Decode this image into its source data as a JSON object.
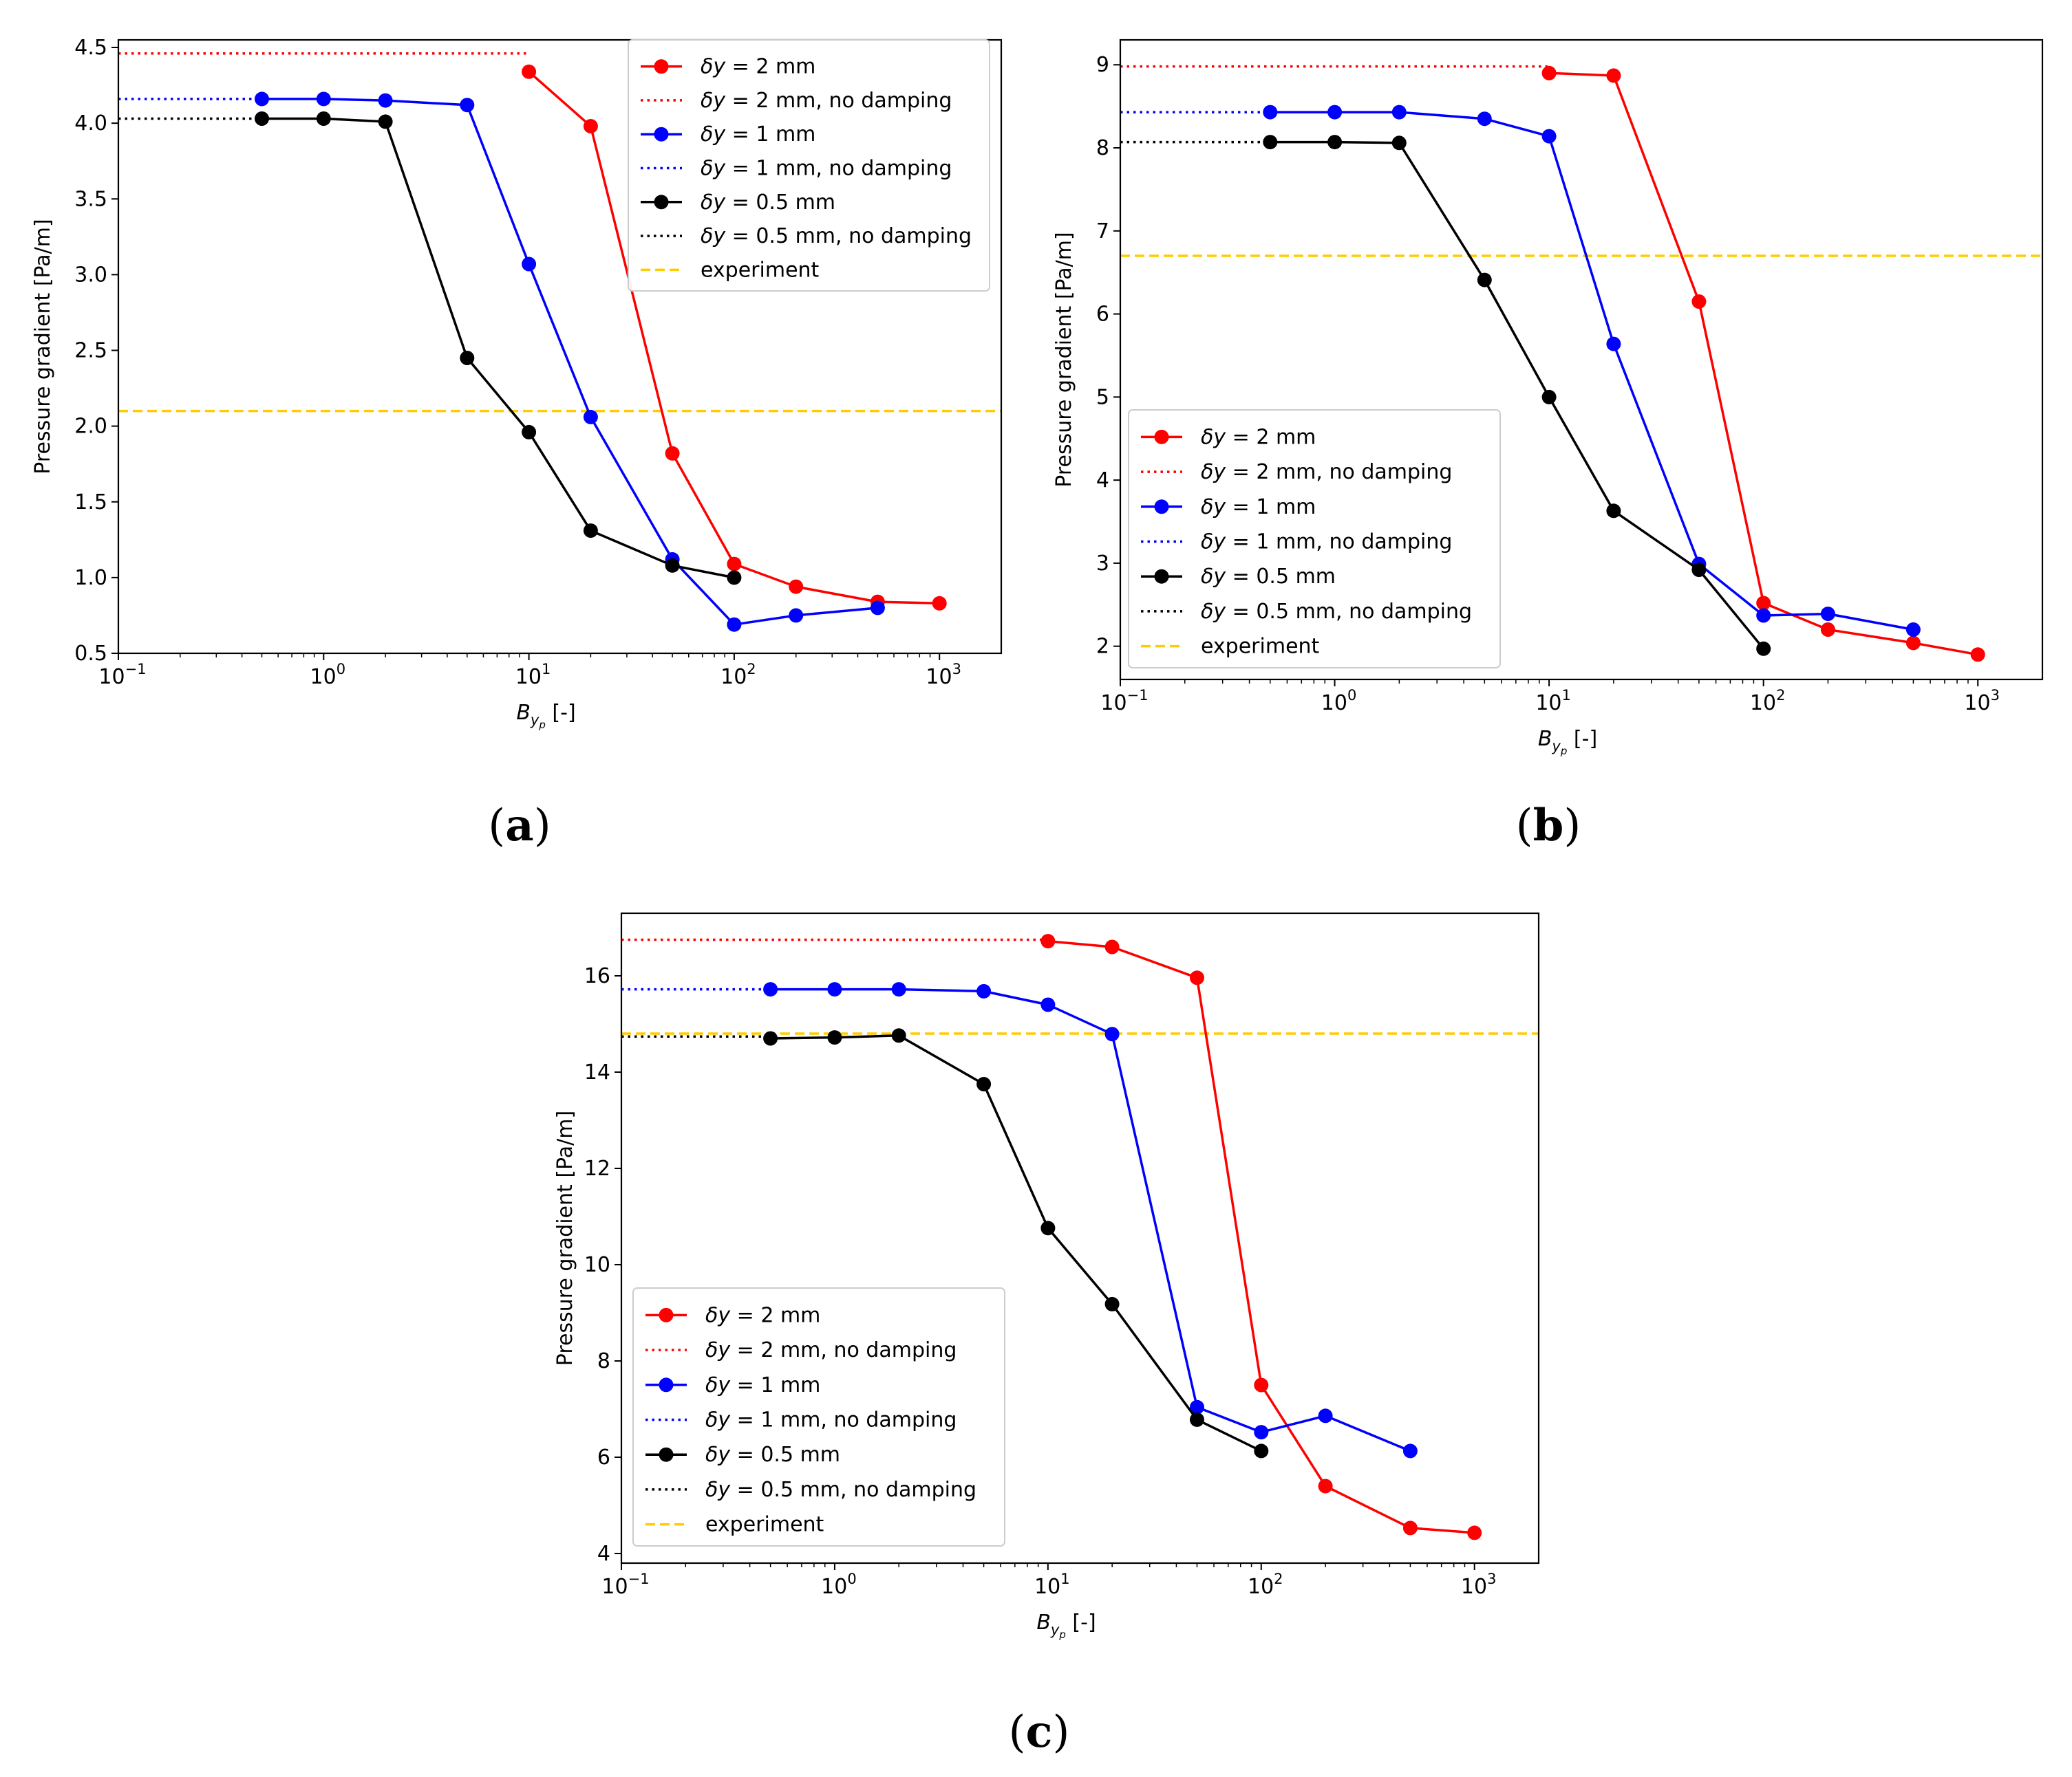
{
  "chart_data": [
    {
      "type": "line",
      "panel": "(a)",
      "caption_label": "a",
      "xscale": "log",
      "xlim": [
        0.1,
        2000
      ],
      "ylim": [
        0.5,
        4.55
      ],
      "xlabel": "B_yp [-]",
      "xlabel_main": "B",
      "xlabel_sub": "y",
      "xlabel_subsub": "p",
      "xlabel_unit": "[-]",
      "ylabel": "Pressure gradient [Pa/m]",
      "x_ticks": [
        0.1,
        1,
        10,
        100,
        1000
      ],
      "x_tick_exponents": [
        "−1",
        "0",
        "1",
        "2",
        "3"
      ],
      "x_tick_base": "10",
      "y_ticks": [
        0.5,
        1.0,
        1.5,
        2.0,
        2.5,
        3.0,
        3.5,
        4.0,
        4.5
      ],
      "y_tick_labels": [
        "0.5",
        "1.0",
        "1.5",
        "2.0",
        "2.5",
        "3.0",
        "3.5",
        "4.0",
        "4.5"
      ],
      "legend_position": "upper-right",
      "series": [
        {
          "name": "δy = 2 mm",
          "legend_symbol": "δy",
          "legend_text": " = 2 mm",
          "style": "solid-marker",
          "color": "#ff0000",
          "x": [
            10,
            20,
            50,
            100,
            200,
            500,
            1000
          ],
          "y": [
            4.34,
            3.98,
            1.82,
            1.09,
            0.94,
            0.84,
            0.83
          ]
        },
        {
          "name": "δy = 2 mm, no damping",
          "legend_symbol": "δy",
          "legend_text": " = 2 mm, no damping",
          "style": "dotted",
          "color": "#ff0000",
          "x": [
            0.1,
            10
          ],
          "y": [
            4.46,
            4.46
          ]
        },
        {
          "name": "δy = 1 mm",
          "legend_symbol": "δy",
          "legend_text": " = 1 mm",
          "style": "solid-marker",
          "color": "#0000ff",
          "x": [
            0.5,
            1,
            2,
            5,
            10,
            20,
            50,
            100,
            200,
            500
          ],
          "y": [
            4.16,
            4.16,
            4.15,
            4.12,
            3.07,
            2.06,
            1.12,
            0.69,
            0.75,
            0.8
          ]
        },
        {
          "name": "δy = 1 mm, no damping",
          "legend_symbol": "δy",
          "legend_text": " = 1 mm, no damping",
          "style": "dotted",
          "color": "#0000ff",
          "x": [
            0.1,
            0.5
          ],
          "y": [
            4.16,
            4.16
          ]
        },
        {
          "name": "δy = 0.5 mm",
          "legend_symbol": "δy",
          "legend_text": " = 0.5 mm",
          "style": "solid-marker",
          "color": "#000000",
          "x": [
            0.5,
            1,
            2,
            5,
            10,
            20,
            50,
            100
          ],
          "y": [
            4.03,
            4.03,
            4.01,
            2.45,
            1.96,
            1.31,
            1.08,
            1.0
          ]
        },
        {
          "name": "δy = 0.5 mm, no damping",
          "legend_symbol": "δy",
          "legend_text": " = 0.5 mm, no damping",
          "style": "dotted",
          "color": "#000000",
          "x": [
            0.1,
            0.5
          ],
          "y": [
            4.03,
            4.03
          ]
        },
        {
          "name": "experiment",
          "legend_symbol": "",
          "legend_text": "experiment",
          "style": "dashed",
          "color": "#ffcc00",
          "x": [
            0.1,
            2000
          ],
          "y": [
            2.1,
            2.1
          ]
        }
      ]
    },
    {
      "type": "line",
      "panel": "(b)",
      "caption_label": "b",
      "xscale": "log",
      "xlim": [
        0.1,
        2000
      ],
      "ylim": [
        1.6,
        9.3
      ],
      "xlabel": "B_yp [-]",
      "xlabel_main": "B",
      "xlabel_sub": "y",
      "xlabel_subsub": "p",
      "xlabel_unit": "[-]",
      "ylabel": "Pressure gradient [Pa/m]",
      "x_ticks": [
        0.1,
        1,
        10,
        100,
        1000
      ],
      "x_tick_exponents": [
        "−1",
        "0",
        "1",
        "2",
        "3"
      ],
      "x_tick_base": "10",
      "y_ticks": [
        2,
        3,
        4,
        5,
        6,
        7,
        8,
        9
      ],
      "y_tick_labels": [
        "2",
        "3",
        "4",
        "5",
        "6",
        "7",
        "8",
        "9"
      ],
      "legend_position": "lower-left",
      "series": [
        {
          "name": "δy = 2 mm",
          "legend_symbol": "δy",
          "legend_text": " = 2 mm",
          "style": "solid-marker",
          "color": "#ff0000",
          "x": [
            10,
            20,
            50,
            100,
            200,
            500,
            1000
          ],
          "y": [
            8.9,
            8.87,
            6.15,
            2.52,
            2.2,
            2.04,
            1.9
          ]
        },
        {
          "name": "δy = 2 mm, no damping",
          "legend_symbol": "δy",
          "legend_text": " = 2 mm, no damping",
          "style": "dotted",
          "color": "#ff0000",
          "x": [
            0.1,
            10
          ],
          "y": [
            8.98,
            8.98
          ]
        },
        {
          "name": "δy = 1 mm",
          "legend_symbol": "δy",
          "legend_text": " = 1 mm",
          "style": "solid-marker",
          "color": "#0000ff",
          "x": [
            0.5,
            1,
            2,
            5,
            10,
            20,
            50,
            100,
            200,
            500
          ],
          "y": [
            8.43,
            8.43,
            8.43,
            8.35,
            8.14,
            5.64,
            2.99,
            2.37,
            2.39,
            2.2
          ]
        },
        {
          "name": "δy = 1 mm, no damping",
          "legend_symbol": "δy",
          "legend_text": " = 1 mm, no damping",
          "style": "dotted",
          "color": "#0000ff",
          "x": [
            0.1,
            0.5
          ],
          "y": [
            8.43,
            8.43
          ]
        },
        {
          "name": "δy = 0.5 mm",
          "legend_symbol": "δy",
          "legend_text": " = 0.5 mm",
          "style": "solid-marker",
          "color": "#000000",
          "x": [
            0.5,
            1,
            2,
            5,
            10,
            20,
            50,
            100
          ],
          "y": [
            8.07,
            8.07,
            8.06,
            6.41,
            5.0,
            3.63,
            2.92,
            1.97
          ]
        },
        {
          "name": "δy = 0.5 mm, no damping",
          "legend_symbol": "δy",
          "legend_text": " = 0.5 mm, no damping",
          "style": "dotted",
          "color": "#000000",
          "x": [
            0.1,
            0.5
          ],
          "y": [
            8.07,
            8.07
          ]
        },
        {
          "name": "experiment",
          "legend_symbol": "",
          "legend_text": "experiment",
          "style": "dashed",
          "color": "#ffcc00",
          "x": [
            0.1,
            2000
          ],
          "y": [
            6.7,
            6.7
          ]
        }
      ]
    },
    {
      "type": "line",
      "panel": "(c)",
      "caption_label": "c",
      "xscale": "log",
      "xlim": [
        0.1,
        2000
      ],
      "ylim": [
        3.8,
        17.3
      ],
      "xlabel": "B_yp [-]",
      "xlabel_main": "B",
      "xlabel_sub": "y",
      "xlabel_subsub": "p",
      "xlabel_unit": "[-]",
      "ylabel": "Pressure gradient [Pa/m]",
      "x_ticks": [
        0.1,
        1,
        10,
        100,
        1000
      ],
      "x_tick_exponents": [
        "−1",
        "0",
        "1",
        "2",
        "3"
      ],
      "x_tick_base": "10",
      "y_ticks": [
        4,
        6,
        8,
        10,
        12,
        14,
        16
      ],
      "y_tick_labels": [
        "4",
        "6",
        "8",
        "10",
        "12",
        "14",
        "16"
      ],
      "legend_position": "lower-left",
      "series": [
        {
          "name": "δy = 2 mm",
          "legend_symbol": "δy",
          "legend_text": " = 2 mm",
          "style": "solid-marker",
          "color": "#ff0000",
          "x": [
            10,
            20,
            50,
            100,
            200,
            500,
            1000
          ],
          "y": [
            16.72,
            16.6,
            15.96,
            7.5,
            5.4,
            4.53,
            4.43
          ]
        },
        {
          "name": "δy = 2 mm, no damping",
          "legend_symbol": "δy",
          "legend_text": " = 2 mm, no damping",
          "style": "dotted",
          "color": "#ff0000",
          "x": [
            0.1,
            10
          ],
          "y": [
            16.75,
            16.75
          ]
        },
        {
          "name": "δy = 1 mm",
          "legend_symbol": "δy",
          "legend_text": " = 1 mm",
          "style": "solid-marker",
          "color": "#0000ff",
          "x": [
            0.5,
            1,
            2,
            5,
            10,
            20,
            50,
            100,
            200,
            500
          ],
          "y": [
            15.72,
            15.72,
            15.72,
            15.68,
            15.4,
            14.79,
            7.04,
            6.52,
            6.86,
            6.13
          ]
        },
        {
          "name": "δy = 1 mm, no damping",
          "legend_symbol": "δy",
          "legend_text": " = 1 mm, no damping",
          "style": "dotted",
          "color": "#0000ff",
          "x": [
            0.1,
            0.5
          ],
          "y": [
            15.72,
            15.72
          ]
        },
        {
          "name": "δy = 0.5 mm",
          "legend_symbol": "δy",
          "legend_text": " = 0.5 mm",
          "style": "solid-marker",
          "color": "#000000",
          "x": [
            0.5,
            1,
            2,
            5,
            10,
            20,
            50,
            100
          ],
          "y": [
            14.7,
            14.72,
            14.76,
            13.75,
            10.76,
            9.18,
            6.78,
            6.13
          ]
        },
        {
          "name": "δy = 0.5 mm, no damping",
          "legend_symbol": "δy",
          "legend_text": " = 0.5 mm, no damping",
          "style": "dotted",
          "color": "#000000",
          "x": [
            0.1,
            0.5
          ],
          "y": [
            14.74,
            14.74
          ]
        },
        {
          "name": "experiment",
          "legend_symbol": "",
          "legend_text": "experiment",
          "style": "dashed",
          "color": "#ffcc00",
          "x": [
            0.1,
            2000
          ],
          "y": [
            14.8,
            14.8
          ]
        }
      ]
    }
  ]
}
